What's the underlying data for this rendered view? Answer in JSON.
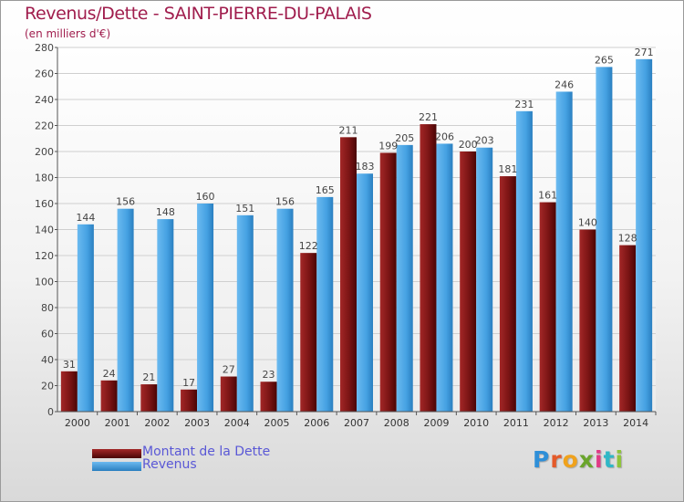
{
  "header": {
    "title": "Revenus/Dette - SAINT-PIERRE-DU-PALAIS",
    "subtitle": "(en milliers d'€)"
  },
  "legend": {
    "items": [
      {
        "label": "Montant de la Dette",
        "color": "#7a1414"
      },
      {
        "label": "Revenus",
        "color": "#3f9ce0"
      }
    ]
  },
  "logo": {
    "text": "Proxiti",
    "colors": [
      "#2e8fd8",
      "#e45a2a",
      "#f0a21c",
      "#6aa52c",
      "#e03a86",
      "#2fb7c6",
      "#8fc43a"
    ]
  },
  "chart_data": {
    "type": "bar",
    "categories": [
      "2000",
      "2001",
      "2002",
      "2003",
      "2004",
      "2005",
      "2006",
      "2007",
      "2008",
      "2009",
      "2010",
      "2011",
      "2012",
      "2013",
      "2014"
    ],
    "series": [
      {
        "name": "Montant de la Dette",
        "color": "#7a1414",
        "values": [
          31,
          24,
          21,
          17,
          27,
          23,
          122,
          211,
          199,
          221,
          200,
          181,
          161,
          140,
          128
        ],
        "labels": [
          "31",
          "24",
          "21",
          "17",
          "27",
          "23",
          "122",
          "211",
          "199",
          "221",
          "200",
          "181",
          "161",
          "140",
          "128"
        ]
      },
      {
        "name": "Revenus",
        "color": "#3f9ce0",
        "values": [
          144,
          156,
          148,
          160,
          151,
          156,
          165,
          183,
          205,
          206,
          203,
          231,
          246,
          265,
          271
        ],
        "labels": [
          "144",
          "156",
          "148",
          "160",
          "151",
          "156",
          "165",
          "183",
          "205",
          "206",
          "203",
          "231",
          "246",
          "265",
          "271"
        ]
      }
    ],
    "ylim": [
      0,
      280
    ],
    "yticks": [
      0,
      20,
      40,
      60,
      80,
      100,
      120,
      140,
      160,
      180,
      200,
      220,
      240,
      260,
      280
    ],
    "grid": true,
    "legend_position": "bottom-left"
  }
}
